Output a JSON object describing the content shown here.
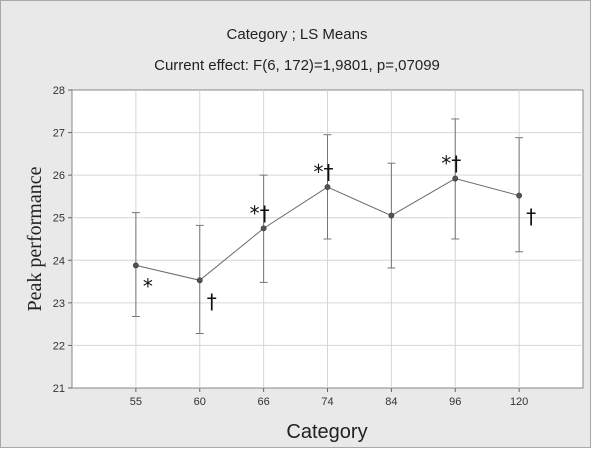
{
  "chart_data": {
    "type": "line",
    "title": "Category ; LS Means",
    "subtitle": "Current effect: F(6, 172)=1,9801, p=,07099",
    "xlabel": "Category",
    "ylabel": "Peak performance",
    "categories": [
      "55",
      "60",
      "66",
      "74",
      "84",
      "96",
      "120"
    ],
    "series": [
      {
        "values": [
          23.88,
          23.53,
          24.75,
          25.72,
          25.05,
          25.92,
          25.52
        ],
        "error_low": [
          22.68,
          22.28,
          23.48,
          24.5,
          23.82,
          24.5,
          24.2
        ],
        "error_high": [
          25.12,
          24.82,
          26.0,
          26.95,
          26.28,
          27.32,
          26.88
        ]
      }
    ],
    "annotations": [
      "*",
      "†",
      "*†",
      "*†",
      "",
      "*†",
      "†"
    ],
    "ylim": [
      21,
      28
    ],
    "yticks": [
      "21",
      "22",
      "23",
      "24",
      "25",
      "26",
      "27",
      "28"
    ],
    "grid": true,
    "colors": {
      "line": "#6a6a6a",
      "point": "#555555",
      "error": "#777777",
      "grid": "#d6d6d6",
      "plot_bg": "#ffffff",
      "frame_bg": "#e9e9e9"
    }
  }
}
